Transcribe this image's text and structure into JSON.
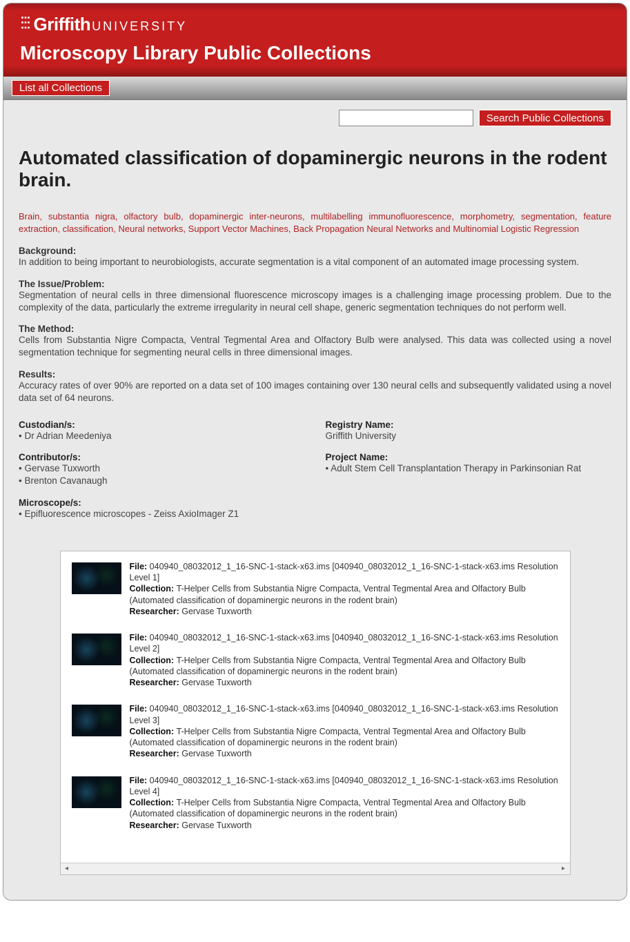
{
  "brand": {
    "griffith": "Griffith",
    "university": "UNIVERSITY"
  },
  "site_title": "Microscopy Library Public Collections",
  "nav": {
    "list_all": "List all Collections"
  },
  "search": {
    "placeholder": "",
    "button": "Search Public Collections"
  },
  "page_title": "Automated classification of dopaminergic neurons in the rodent brain.",
  "keywords": "Brain, substantia nigra, olfactory bulb, dopaminergic inter-neurons, multilabelling immunofluorescence, morphometry, segmentation, feature extraction, classification, Neural networks, Support Vector Machines, Back Propagation Neural Networks and Multinomial Logistic Regression",
  "sections": {
    "background_label": "Background:",
    "background_text": "In addition to being important to neurobiologists, accurate segmentation is a vital component of an automated image processing system.",
    "issue_label": "The Issue/Problem:",
    "issue_text": "Segmentation of neural cells in three dimensional fluorescence microscopy images is a challenging image processing problem. Due to the complexity of the data, particularly the extreme irregularity in neural cell shape, generic segmentation techniques do not perform well.",
    "method_label": "The Method:",
    "method_text": "Cells from Substantia Nigre Compacta, Ventral Tegmental Area and Olfactory Bulb were analysed. This data was collected using a novel segmentation technique for segmenting neural cells in three dimensional images.",
    "results_label": "Results:",
    "results_text": "Accuracy rates of over 90% are reported on a data set of 100 images containing over 130 neural cells and subsequently validated using a novel data set of 64 neurons."
  },
  "meta": {
    "custodian_label": "Custodian/s:",
    "custodian_1": "• Dr Adrian Meedeniya",
    "contributor_label": "Contributor/s:",
    "contributor_1": "• Gervase Tuxworth",
    "contributor_2": "• Brenton Cavanaugh",
    "microscope_label": "Microscope/s:",
    "microscope_1": "• Epifluorescence microscopes - Zeiss AxioImager Z1",
    "registry_label": "Registry Name:",
    "registry_value": "Griffith University",
    "project_label": "Project Name:",
    "project_1": "• Adult Stem Cell Transplantation Therapy in Parkinsonian Rat"
  },
  "file_labels": {
    "file": "File: ",
    "collection": "Collection: ",
    "researcher": "Researcher: "
  },
  "files": [
    {
      "file": "040940_08032012_1_16-SNC-1-stack-x63.ims [040940_08032012_1_16-SNC-1-stack-x63.ims Resolution Level 1]",
      "collection": "T-Helper Cells from Substantia Nigre Compacta, Ventral Tegmental Area and Olfactory Bulb (Automated classification of dopaminergic neurons in the rodent brain)",
      "researcher": "Gervase Tuxworth"
    },
    {
      "file": "040940_08032012_1_16-SNC-1-stack-x63.ims [040940_08032012_1_16-SNC-1-stack-x63.ims Resolution Level 2]",
      "collection": "T-Helper Cells from Substantia Nigre Compacta, Ventral Tegmental Area and Olfactory Bulb (Automated classification of dopaminergic neurons in the rodent brain)",
      "researcher": "Gervase Tuxworth"
    },
    {
      "file": "040940_08032012_1_16-SNC-1-stack-x63.ims [040940_08032012_1_16-SNC-1-stack-x63.ims Resolution Level 3]",
      "collection": "T-Helper Cells from Substantia Nigre Compacta, Ventral Tegmental Area and Olfactory Bulb (Automated classification of dopaminergic neurons in the rodent brain)",
      "researcher": "Gervase Tuxworth"
    },
    {
      "file": "040940_08032012_1_16-SNC-1-stack-x63.ims [040940_08032012_1_16-SNC-1-stack-x63.ims Resolution Level 4]",
      "collection": "T-Helper Cells from Substantia Nigre Compacta, Ventral Tegmental Area and Olfactory Bulb (Automated classification of dopaminergic neurons in the rodent brain)",
      "researcher": "Gervase Tuxworth"
    }
  ]
}
